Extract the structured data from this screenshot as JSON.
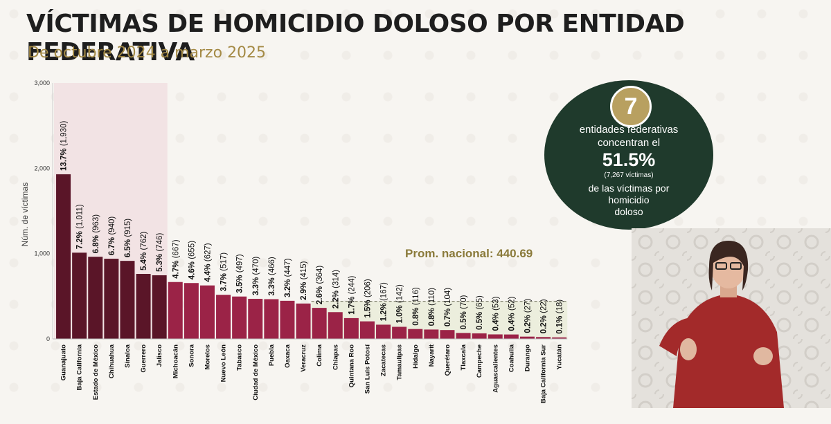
{
  "header": {
    "title": "VÍCTIMAS DE HOMICIDIO DOLOSO POR ENTIDAD FEDERATIVA",
    "subtitle": "De octubre 2024 a marzo 2025"
  },
  "chart_data": {
    "type": "bar",
    "ylabel": "Núm. de víctimas",
    "ylim": [
      0,
      3000
    ],
    "yticks": [
      "0",
      "1,000",
      "2,000",
      "3,000"
    ],
    "categories": [
      "Guanajuato",
      "Baja California",
      "Estado de México",
      "Chihuahua",
      "Sinaloa",
      "Guerrero",
      "Jalisco",
      "Michoacán",
      "Sonora",
      "Morelos",
      "Nuevo León",
      "Tabasco",
      "Ciudad de México",
      "Puebla",
      "Oaxaca",
      "Veracruz",
      "Colima",
      "Chiapas",
      "Quintana Roo",
      "San Luis Potosí",
      "Zacatecas",
      "Tamaulipas",
      "Hidalgo",
      "Nayarit",
      "Querétaro",
      "Tlaxcala",
      "Campeche",
      "Aguascalientes",
      "Coahuila",
      "Durango",
      "Baja California Sur",
      "Yucatán"
    ],
    "values": [
      1930,
      1011,
      963,
      940,
      915,
      762,
      746,
      667,
      655,
      627,
      517,
      497,
      470,
      466,
      447,
      415,
      364,
      314,
      244,
      206,
      167,
      142,
      116,
      110,
      104,
      70,
      65,
      53,
      52,
      27,
      22,
      18
    ],
    "pct_labels": [
      "13.7%",
      "7.2%",
      "6.8%",
      "6.7%",
      "6.5%",
      "5.4%",
      "5.3%",
      "4.7%",
      "4.6%",
      "4.4%",
      "3.7%",
      "3.5%",
      "3.3%",
      "3.3%",
      "3.2%",
      "2.9%",
      "2.6%",
      "2.2%",
      "1.7%",
      "1.5%",
      "1.2%",
      "1.0%",
      "0.8%",
      "0.8%",
      "0.7%",
      "0.5%",
      "0.5%",
      "0.4%",
      "0.4%",
      "0.2%",
      "0.2%",
      "0.1%"
    ],
    "count_labels": [
      "(1,930)",
      "(1,011)",
      "(963)",
      "(940)",
      "(915)",
      "(762)",
      "(746)",
      "(667)",
      "(655)",
      "(627)",
      "(517)",
      "(497)",
      "(470)",
      "(466)",
      "(447)",
      "(415)",
      "(364)",
      "(314)",
      "(244)",
      "(206)",
      "(167)",
      "(142)",
      "(116)",
      "(110)",
      "(104)",
      "(70)",
      "(65)",
      "(53)",
      "(52)",
      "(27)",
      "(22)",
      "(18)"
    ],
    "average_label": "Prom. nacional: 440.69",
    "average_value": 440.69,
    "highlight_count": 7,
    "colors": {
      "top7": "#5a1528",
      "rest": "#9b2347",
      "highlight_bg": "#f2e3e4",
      "avg_bg": "#eceedd",
      "avg_label": "#8a7a3a"
    }
  },
  "summary": {
    "number": "7",
    "line1": "entidades federativas",
    "line2": "concentran el",
    "percent": "51.5%",
    "victims": "(7,267 víctimas)",
    "line3": "de las víctimas por",
    "line4": "homicidio",
    "line5": "doloso"
  }
}
